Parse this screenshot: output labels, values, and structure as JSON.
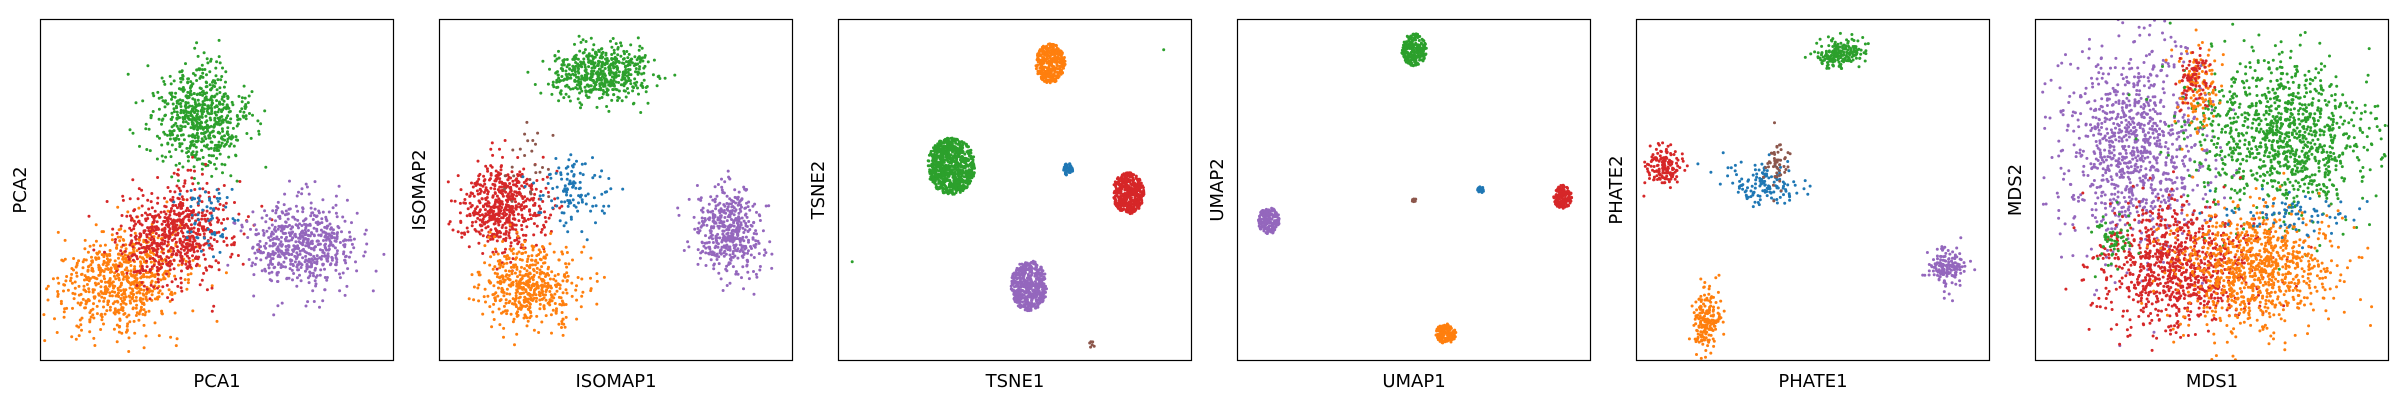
{
  "figure": {
    "background": "#ffffff"
  },
  "palette": {
    "blue": "#1f77b4",
    "orange": "#ff7f0e",
    "green": "#2ca02c",
    "red": "#d62728",
    "purple": "#9467bd",
    "brown": "#8c564b",
    "axes": "#000000"
  },
  "chart_data": [
    {
      "type": "scatter",
      "xlabel": "PCA1",
      "ylabel": "PCA2",
      "xlim": [
        0,
        100
      ],
      "ylim": [
        0,
        100
      ],
      "grid": false,
      "ticks": false,
      "clusters": [
        {
          "color": "green",
          "cx": 45,
          "cy": 71,
          "sx": 6.5,
          "sy": 7.5,
          "rot": 0,
          "n": 650
        },
        {
          "color": "orange",
          "cx": 23,
          "cy": 24,
          "sx": 9.5,
          "sy": 7.5,
          "rot": 25,
          "n": 700
        },
        {
          "color": "red",
          "cx": 38,
          "cy": 37,
          "sx": 8,
          "sy": 7,
          "rot": 15,
          "n": 650
        },
        {
          "color": "purple",
          "cx": 74,
          "cy": 34,
          "sx": 7.5,
          "sy": 6,
          "rot": 0,
          "n": 600
        },
        {
          "color": "blue",
          "cx": 48,
          "cy": 42,
          "sx": 4,
          "sy": 5,
          "rot": 0,
          "n": 60
        }
      ]
    },
    {
      "type": "scatter",
      "xlabel": "ISOMAP1",
      "ylabel": "ISOMAP2",
      "xlim": [
        0,
        100
      ],
      "ylim": [
        0,
        100
      ],
      "grid": false,
      "ticks": false,
      "clusters": [
        {
          "color": "green",
          "cx": 46,
          "cy": 84,
          "sx": 7,
          "sy": 4,
          "rot": 0,
          "n": 550
        },
        {
          "color": "red",
          "cx": 18,
          "cy": 45,
          "sx": 6,
          "sy": 6,
          "rot": 0,
          "n": 550
        },
        {
          "color": "orange",
          "cx": 25,
          "cy": 22,
          "sx": 7,
          "sy": 6,
          "rot": 0,
          "n": 500
        },
        {
          "color": "purple",
          "cx": 82,
          "cy": 38,
          "sx": 4.5,
          "sy": 6.5,
          "rot": 0,
          "n": 450
        },
        {
          "color": "blue",
          "cx": 38,
          "cy": 50,
          "sx": 5,
          "sy": 5,
          "rot": 0,
          "n": 120
        },
        {
          "color": "brown",
          "cx": 26,
          "cy": 58,
          "sx": 5,
          "sy": 8,
          "rot": 0,
          "n": 25
        }
      ]
    },
    {
      "type": "scatter",
      "xlabel": "TSNE1",
      "ylabel": "TSNE2",
      "xlim": [
        0,
        100
      ],
      "ylim": [
        0,
        100
      ],
      "grid": false,
      "ticks": false,
      "clusters": [
        {
          "color": "green",
          "cx": 32,
          "cy": 57,
          "sx": 4.2,
          "sy": 5.2,
          "rot": 0,
          "n": 800,
          "dist": "disk"
        },
        {
          "color": "orange",
          "cx": 60,
          "cy": 87,
          "sx": 2.6,
          "sy": 3.6,
          "rot": 0,
          "n": 350,
          "dist": "disk"
        },
        {
          "color": "red",
          "cx": 82,
          "cy": 49,
          "sx": 2.8,
          "sy": 3.8,
          "rot": 0,
          "n": 400,
          "dist": "disk"
        },
        {
          "color": "purple",
          "cx": 54,
          "cy": 22,
          "sx": 3.2,
          "sy": 4.6,
          "rot": 0,
          "n": 500,
          "dist": "disk"
        },
        {
          "color": "blue",
          "cx": 65,
          "cy": 56,
          "sx": 0.9,
          "sy": 1.1,
          "rot": 0,
          "n": 40,
          "dist": "disk"
        },
        {
          "color": "brown",
          "cx": 72,
          "cy": 5,
          "sx": 0.6,
          "sy": 0.8,
          "rot": 0,
          "n": 6,
          "dist": "disk"
        }
      ],
      "outliers": [
        {
          "color": "green",
          "x": 4,
          "y": 29
        },
        {
          "color": "green",
          "x": 92,
          "y": 91
        }
      ]
    },
    {
      "type": "scatter",
      "xlabel": "UMAP1",
      "ylabel": "UMAP2",
      "xlim": [
        0,
        100
      ],
      "ylim": [
        0,
        100
      ],
      "grid": false,
      "ticks": false,
      "clusters": [
        {
          "color": "green",
          "cx": 50,
          "cy": 91,
          "sx": 2.2,
          "sy": 3,
          "rot": 0,
          "n": 250,
          "dist": "disk"
        },
        {
          "color": "purple",
          "cx": 9,
          "cy": 41,
          "sx": 1.9,
          "sy": 2.4,
          "rot": 0,
          "n": 180,
          "dist": "disk"
        },
        {
          "color": "red",
          "cx": 92,
          "cy": 48,
          "sx": 1.6,
          "sy": 2.2,
          "rot": 0,
          "n": 160,
          "dist": "disk"
        },
        {
          "color": "orange",
          "cx": 59,
          "cy": 8,
          "sx": 1.8,
          "sy": 1.8,
          "rot": 0,
          "n": 140,
          "dist": "disk"
        },
        {
          "color": "blue",
          "cx": 69,
          "cy": 50,
          "sx": 0.7,
          "sy": 0.6,
          "rot": 0,
          "n": 20,
          "dist": "disk"
        },
        {
          "color": "brown",
          "cx": 50,
          "cy": 47,
          "sx": 0.4,
          "sy": 0.6,
          "rot": 0,
          "n": 6,
          "dist": "disk"
        }
      ]
    },
    {
      "type": "scatter",
      "xlabel": "PHATE1",
      "ylabel": "PHATE2",
      "xlim": [
        0,
        100
      ],
      "ylim": [
        0,
        100
      ],
      "grid": false,
      "ticks": false,
      "clusters": [
        {
          "color": "green",
          "cx": 58,
          "cy": 90,
          "sx": 3.5,
          "sy": 2.2,
          "rot": 0,
          "n": 200
        },
        {
          "color": "red",
          "cx": 8,
          "cy": 57,
          "sx": 2.5,
          "sy": 3,
          "rot": 0,
          "n": 150
        },
        {
          "color": "blue",
          "cx": 36,
          "cy": 52,
          "sx": 5,
          "sy": 3,
          "rot": 0,
          "n": 140
        },
        {
          "color": "brown",
          "cx": 40,
          "cy": 58,
          "sx": 1.8,
          "sy": 3.5,
          "rot": 0,
          "n": 50
        },
        {
          "color": "orange",
          "cx": 20,
          "cy": 12,
          "sx": 2,
          "sy": 4.5,
          "rot": 0,
          "n": 180
        },
        {
          "color": "purple",
          "cx": 88,
          "cy": 28,
          "sx": 2.5,
          "sy": 3,
          "rot": 0,
          "n": 150
        }
      ]
    },
    {
      "type": "scatter",
      "xlabel": "MDS1",
      "ylabel": "MDS2",
      "xlim": [
        0,
        100
      ],
      "ylim": [
        0,
        100
      ],
      "grid": false,
      "ticks": false,
      "clusters": [
        {
          "color": "purple",
          "cx": 28,
          "cy": 62,
          "sx": 10,
          "sy": 15,
          "rot": 0,
          "n": 1000
        },
        {
          "color": "green",
          "cx": 70,
          "cy": 66,
          "sx": 13,
          "sy": 11,
          "rot": -20,
          "n": 1100
        },
        {
          "color": "red",
          "cx": 40,
          "cy": 28,
          "sx": 11,
          "sy": 9,
          "rot": 0,
          "n": 900
        },
        {
          "color": "orange",
          "cx": 62,
          "cy": 27,
          "sx": 11,
          "sy": 9,
          "rot": 0,
          "n": 900
        },
        {
          "color": "orange",
          "cx": 46,
          "cy": 80,
          "sx": 3,
          "sy": 7,
          "rot": 0,
          "n": 120
        },
        {
          "color": "red",
          "cx": 45,
          "cy": 83,
          "sx": 2.5,
          "sy": 5,
          "rot": 0,
          "n": 80
        },
        {
          "color": "blue",
          "cx": 70,
          "cy": 43,
          "sx": 10,
          "sy": 3,
          "rot": 0,
          "n": 80
        },
        {
          "color": "green",
          "cx": 22,
          "cy": 35,
          "sx": 3,
          "sy": 4,
          "rot": 0,
          "n": 60
        }
      ]
    }
  ]
}
